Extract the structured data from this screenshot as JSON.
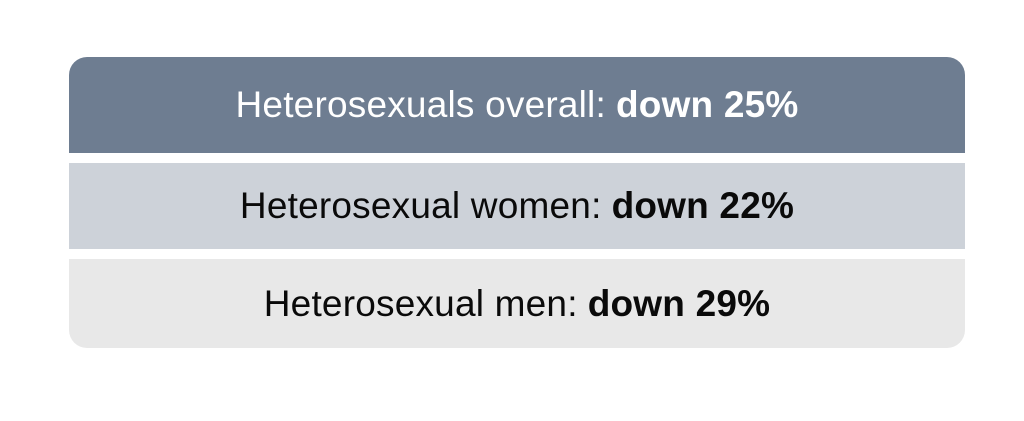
{
  "rows": [
    {
      "label": "Heterosexuals overall:",
      "value": "down 25%",
      "color": "#6e7d91"
    },
    {
      "label": "Heterosexual women:",
      "value": "down 22%",
      "color": "#cdd2d9"
    },
    {
      "label": "Heterosexual men:",
      "value": "down 29%",
      "color": "#e8e8e8"
    }
  ]
}
